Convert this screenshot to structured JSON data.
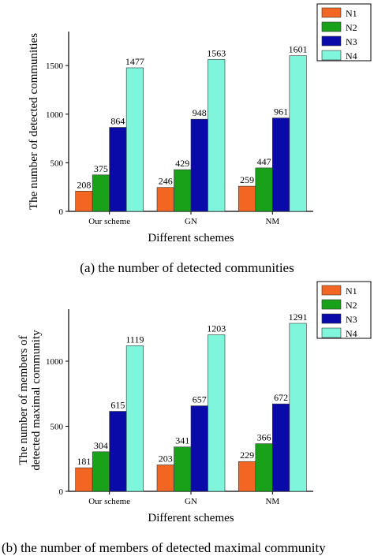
{
  "colors": {
    "N1": "#f26522",
    "N2": "#1aa11a",
    "N3": "#0a0aa8",
    "N4": "#7ff5dc"
  },
  "chart_data": [
    {
      "type": "bar",
      "caption": "(a)  the number of detected communities",
      "xlabel": "Different schemes",
      "ylabel": "The number of detected communities",
      "categories": [
        "Our scheme",
        "GN",
        "NM"
      ],
      "series": [
        {
          "name": "N1",
          "values": [
            208,
            246,
            259
          ]
        },
        {
          "name": "N2",
          "values": [
            375,
            429,
            447
          ]
        },
        {
          "name": "N3",
          "values": [
            864,
            948,
            961
          ]
        },
        {
          "name": "N4",
          "values": [
            1477,
            1563,
            1601
          ]
        }
      ],
      "yticks": [
        0,
        500,
        1000,
        1500
      ],
      "ylim": [
        0,
        1850
      ],
      "legend": "top-right",
      "grid": false
    },
    {
      "type": "bar",
      "caption": "(b)  the number of members of detected maximal community",
      "xlabel": "Different schemes",
      "ylabel": [
        "The number of members of",
        "detected maximal community"
      ],
      "categories": [
        "Our scheme",
        "GN",
        "NM"
      ],
      "series": [
        {
          "name": "N1",
          "values": [
            181,
            203,
            229
          ]
        },
        {
          "name": "N2",
          "values": [
            304,
            341,
            366
          ]
        },
        {
          "name": "N3",
          "values": [
            615,
            657,
            672
          ]
        },
        {
          "name": "N4",
          "values": [
            1119,
            1203,
            1291
          ]
        }
      ],
      "yticks": [
        0,
        500,
        1000
      ],
      "ylim": [
        0,
        1400
      ],
      "legend": "top-right",
      "grid": false
    }
  ]
}
